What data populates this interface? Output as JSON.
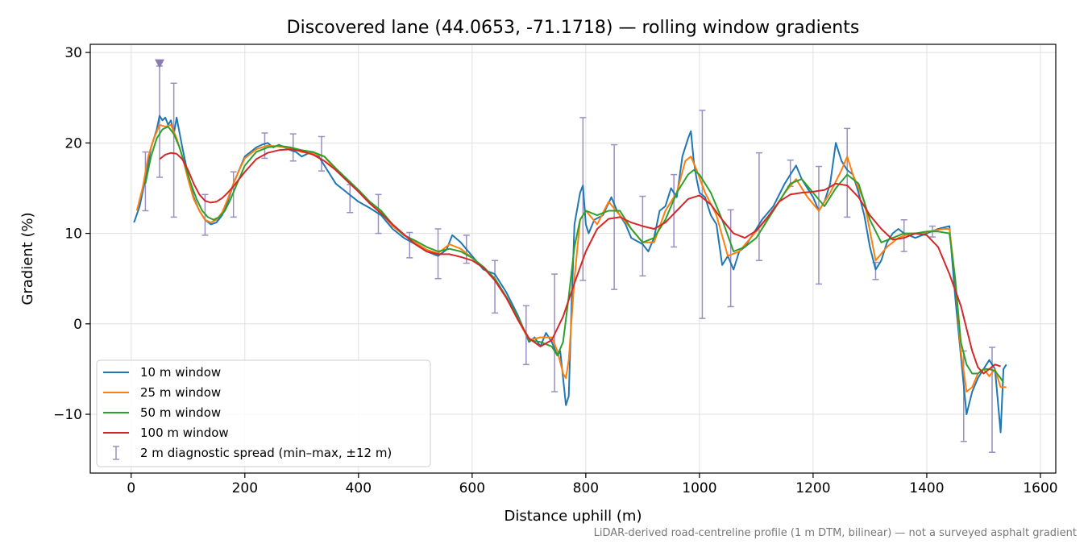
{
  "chart_data": {
    "type": "line",
    "title": "Discovered lane (44.0653, -71.1718) — rolling window gradients",
    "xlabel": "Distance uphill (m)",
    "ylabel": "Gradient (%)",
    "footnote": "LiDAR-derived road-centreline profile (1 m DTM, bilinear) — not a surveyed asphalt gradient",
    "xlim": [
      -72,
      1627
    ],
    "ylim": [
      -16.5,
      30.9
    ],
    "xticks": [
      0,
      200,
      400,
      600,
      800,
      1000,
      1200,
      1400,
      1600
    ],
    "xtick_labels": [
      "0",
      "200",
      "400",
      "600",
      "800",
      "1000",
      "1200",
      "1400",
      "1600"
    ],
    "yticks": [
      -10,
      0,
      10,
      20,
      30
    ],
    "ytick_labels": [
      "−10",
      "0",
      "10",
      "20",
      "30"
    ],
    "grid": true,
    "legend_position": "lower-left",
    "marker": {
      "x": 50,
      "y": 28.8,
      "shape": "triangle-down",
      "color": "#8c7bb0"
    },
    "series": [
      {
        "name": "10 m window",
        "color": "#1f77b4",
        "x": [
          5,
          15,
          25,
          35,
          45,
          50,
          55,
          60,
          65,
          70,
          75,
          80,
          90,
          100,
          110,
          120,
          130,
          140,
          150,
          160,
          170,
          180,
          190,
          200,
          210,
          220,
          230,
          240,
          250,
          260,
          270,
          280,
          290,
          300,
          310,
          320,
          330,
          340,
          350,
          360,
          380,
          400,
          420,
          440,
          460,
          480,
          500,
          520,
          540,
          555,
          565,
          580,
          600,
          620,
          640,
          660,
          680,
          700,
          710,
          720,
          730,
          740,
          750,
          755,
          760,
          765,
          770,
          775,
          780,
          790,
          795,
          800,
          805,
          815,
          830,
          845,
          855,
          870,
          880,
          900,
          910,
          920,
          930,
          940,
          950,
          960,
          970,
          980,
          985,
          990,
          995,
          1000,
          1010,
          1020,
          1030,
          1040,
          1050,
          1060,
          1070,
          1080,
          1090,
          1100,
          1110,
          1130,
          1150,
          1160,
          1170,
          1180,
          1200,
          1210,
          1220,
          1230,
          1240,
          1250,
          1260,
          1270,
          1280,
          1290,
          1300,
          1310,
          1320,
          1330,
          1340,
          1350,
          1360,
          1380,
          1400,
          1420,
          1440,
          1450,
          1460,
          1470,
          1480,
          1490,
          1500,
          1510,
          1520,
          1530,
          1535,
          1540
        ],
        "values": [
          11.2,
          13.0,
          16.0,
          19.5,
          21.5,
          23.0,
          22.5,
          22.8,
          22.0,
          22.5,
          21.0,
          22.8,
          19.5,
          16.5,
          14.0,
          12.5,
          11.5,
          11.0,
          11.2,
          12.0,
          13.5,
          15.5,
          17.0,
          18.5,
          19.0,
          19.5,
          19.8,
          20.0,
          19.5,
          19.8,
          19.5,
          19.2,
          19.0,
          18.5,
          18.8,
          19.0,
          18.5,
          17.5,
          16.5,
          15.5,
          14.5,
          13.5,
          12.8,
          12.0,
          10.5,
          9.5,
          8.8,
          8.0,
          7.5,
          8.2,
          9.8,
          9.0,
          7.5,
          6.0,
          5.5,
          3.5,
          1.0,
          -2.0,
          -1.5,
          -2.5,
          -1.0,
          -2.0,
          -3.5,
          -3.0,
          -6.0,
          -9.0,
          -8.0,
          2.0,
          11.0,
          14.5,
          15.3,
          11.0,
          10.0,
          11.5,
          12.0,
          14.0,
          12.5,
          11.0,
          9.5,
          8.8,
          8.0,
          9.5,
          12.5,
          13.0,
          15.0,
          14.0,
          18.5,
          20.5,
          21.3,
          18.0,
          16.0,
          14.5,
          14.0,
          12.0,
          11.0,
          6.5,
          7.5,
          6.0,
          8.0,
          8.5,
          9.5,
          10.5,
          11.5,
          13.0,
          15.5,
          16.5,
          17.5,
          16.0,
          14.0,
          12.5,
          13.5,
          15.5,
          20.0,
          18.0,
          17.0,
          16.5,
          14.5,
          12.0,
          8.5,
          6.0,
          7.0,
          9.0,
          10.0,
          10.5,
          10.0,
          9.5,
          10.0,
          10.5,
          10.8,
          3.0,
          -3.5,
          -10.0,
          -7.5,
          -6.0,
          -5.0,
          -4.0,
          -5.0,
          -12.0,
          -5.0,
          -4.5
        ],
        "values_note": ""
      },
      {
        "name": "25 m window",
        "color": "#ff7f0e",
        "x": [
          10,
          20,
          30,
          40,
          50,
          60,
          70,
          80,
          90,
          100,
          110,
          120,
          130,
          140,
          150,
          160,
          170,
          180,
          190,
          200,
          220,
          240,
          260,
          280,
          300,
          320,
          340,
          360,
          380,
          400,
          420,
          440,
          460,
          480,
          500,
          520,
          540,
          560,
          580,
          600,
          620,
          640,
          660,
          680,
          700,
          720,
          740,
          750,
          760,
          765,
          770,
          780,
          790,
          800,
          820,
          840,
          860,
          880,
          900,
          920,
          940,
          960,
          975,
          985,
          995,
          1010,
          1030,
          1050,
          1070,
          1090,
          1110,
          1130,
          1150,
          1170,
          1190,
          1210,
          1230,
          1250,
          1260,
          1270,
          1290,
          1310,
          1330,
          1350,
          1370,
          1390,
          1410,
          1430,
          1440,
          1450,
          1460,
          1470,
          1480,
          1490,
          1500,
          1510,
          1520,
          1530,
          1540
        ],
        "values": [
          12.5,
          15.0,
          18.5,
          20.5,
          22.0,
          21.8,
          22.0,
          20.5,
          18.5,
          16.0,
          13.8,
          12.5,
          11.5,
          11.2,
          11.5,
          12.3,
          13.8,
          15.5,
          17.0,
          18.3,
          19.3,
          19.7,
          19.6,
          19.4,
          19.0,
          18.8,
          18.5,
          17.0,
          15.8,
          14.8,
          13.3,
          12.3,
          10.8,
          9.8,
          9.0,
          8.2,
          7.8,
          8.8,
          8.3,
          7.3,
          6.2,
          5.0,
          3.0,
          0.5,
          -1.8,
          -1.5,
          -1.5,
          -3.0,
          -5.5,
          -6.0,
          -4.0,
          5.0,
          11.5,
          12.5,
          11.0,
          13.5,
          12.0,
          10.5,
          9.0,
          9.0,
          12.5,
          14.5,
          18.0,
          18.5,
          17.0,
          14.5,
          12.0,
          7.5,
          8.0,
          9.5,
          11.0,
          12.5,
          14.5,
          16.0,
          14.0,
          12.5,
          14.5,
          17.0,
          18.5,
          16.5,
          13.5,
          7.0,
          8.5,
          9.5,
          10.0,
          10.0,
          10.3,
          10.5,
          10.5,
          5.0,
          -3.0,
          -7.5,
          -7.0,
          -5.5,
          -5.0,
          -5.8,
          -5.0,
          -7.0,
          -7.0
        ],
        "values_note": ""
      },
      {
        "name": "50 m window",
        "color": "#2ca02c",
        "x": [
          25,
          35,
          45,
          55,
          65,
          75,
          85,
          95,
          105,
          115,
          125,
          135,
          145,
          155,
          165,
          175,
          185,
          200,
          220,
          240,
          260,
          280,
          300,
          320,
          340,
          360,
          380,
          400,
          420,
          440,
          460,
          480,
          500,
          520,
          540,
          560,
          580,
          600,
          620,
          640,
          660,
          680,
          700,
          720,
          740,
          750,
          760,
          770,
          780,
          790,
          800,
          820,
          840,
          860,
          880,
          900,
          920,
          940,
          960,
          980,
          990,
          1000,
          1020,
          1040,
          1060,
          1080,
          1100,
          1120,
          1140,
          1160,
          1180,
          1200,
          1220,
          1240,
          1260,
          1280,
          1300,
          1320,
          1340,
          1360,
          1380,
          1400,
          1420,
          1440,
          1450,
          1460,
          1470,
          1480,
          1490,
          1500,
          1510,
          1520,
          1530,
          1535
        ],
        "values": [
          15.5,
          18.5,
          20.5,
          21.5,
          21.8,
          21.0,
          19.5,
          17.5,
          15.5,
          13.8,
          12.5,
          11.8,
          11.5,
          11.8,
          12.5,
          13.8,
          15.3,
          17.5,
          19.0,
          19.5,
          19.7,
          19.5,
          19.2,
          19.0,
          18.5,
          17.2,
          16.0,
          14.8,
          13.5,
          12.5,
          11.0,
          9.8,
          9.2,
          8.5,
          8.0,
          8.3,
          8.0,
          7.3,
          6.3,
          5.0,
          3.0,
          0.8,
          -1.8,
          -2.0,
          -2.5,
          -3.5,
          -2.0,
          3.0,
          8.5,
          11.5,
          12.5,
          12.0,
          12.5,
          12.5,
          10.5,
          9.0,
          9.5,
          11.5,
          14.5,
          16.5,
          17.0,
          16.5,
          14.5,
          11.5,
          8.0,
          8.5,
          9.5,
          11.5,
          13.5,
          15.5,
          16.0,
          14.5,
          13.0,
          15.0,
          16.5,
          15.5,
          11.5,
          9.0,
          9.5,
          10.0,
          10.0,
          10.2,
          10.2,
          10.0,
          5.0,
          -2.0,
          -4.5,
          -5.5,
          -5.5,
          -5.0,
          -5.0,
          -5.2,
          -6.0,
          -6.5
        ],
        "values_note": ""
      },
      {
        "name": "100 m window",
        "color": "#d62728",
        "x": [
          50,
          60,
          70,
          80,
          90,
          100,
          110,
          120,
          130,
          140,
          150,
          160,
          170,
          180,
          190,
          200,
          220,
          240,
          260,
          280,
          300,
          320,
          340,
          360,
          380,
          400,
          420,
          440,
          460,
          480,
          500,
          520,
          540,
          560,
          580,
          600,
          620,
          640,
          660,
          680,
          700,
          720,
          740,
          760,
          780,
          800,
          820,
          840,
          860,
          880,
          900,
          920,
          940,
          960,
          980,
          1000,
          1020,
          1040,
          1060,
          1080,
          1100,
          1120,
          1140,
          1160,
          1180,
          1200,
          1220,
          1240,
          1260,
          1280,
          1300,
          1320,
          1340,
          1360,
          1380,
          1400,
          1420,
          1440,
          1460,
          1480,
          1490,
          1500,
          1510,
          1520,
          1530
        ],
        "values": [
          18.2,
          18.7,
          18.9,
          18.8,
          18.2,
          17.0,
          15.5,
          14.3,
          13.6,
          13.4,
          13.5,
          13.9,
          14.5,
          15.2,
          16.0,
          16.8,
          18.2,
          18.9,
          19.2,
          19.3,
          19.1,
          18.7,
          18.0,
          17.0,
          15.8,
          14.6,
          13.3,
          12.2,
          11.0,
          9.9,
          8.8,
          8.0,
          7.7,
          7.7,
          7.4,
          7.0,
          6.2,
          4.8,
          2.9,
          0.5,
          -1.6,
          -2.5,
          -1.8,
          0.8,
          4.5,
          8.0,
          10.5,
          11.6,
          11.8,
          11.2,
          10.8,
          10.5,
          11.2,
          12.5,
          13.8,
          14.2,
          13.2,
          11.5,
          10.0,
          9.5,
          10.3,
          11.8,
          13.5,
          14.3,
          14.5,
          14.6,
          14.8,
          15.5,
          15.3,
          14.0,
          12.0,
          10.5,
          9.3,
          9.5,
          10.0,
          9.8,
          8.5,
          5.5,
          2.0,
          -3.0,
          -4.8,
          -5.5,
          -5.0,
          -4.5,
          -4.7
        ],
        "values_note": ""
      }
    ],
    "error_series": {
      "name": "2 m diagnostic spread (min–max, ±12 m)",
      "color": "#9a8fc0",
      "points": [
        {
          "x": 25,
          "low": 12.5,
          "high": 19.0
        },
        {
          "x": 50,
          "low": 16.2,
          "high": 28.5
        },
        {
          "x": 75,
          "low": 11.8,
          "high": 26.6
        },
        {
          "x": 130,
          "low": 9.8,
          "high": 14.3
        },
        {
          "x": 180,
          "low": 11.8,
          "high": 16.8
        },
        {
          "x": 235,
          "low": 18.3,
          "high": 21.1
        },
        {
          "x": 285,
          "low": 18.0,
          "high": 21.0
        },
        {
          "x": 335,
          "low": 16.9,
          "high": 20.7
        },
        {
          "x": 385,
          "low": 12.3,
          "high": 15.4
        },
        {
          "x": 435,
          "low": 10.0,
          "high": 14.3
        },
        {
          "x": 490,
          "low": 7.3,
          "high": 10.1
        },
        {
          "x": 540,
          "low": 5.0,
          "high": 10.5
        },
        {
          "x": 590,
          "low": 6.7,
          "high": 9.8
        },
        {
          "x": 640,
          "low": 1.2,
          "high": 7.0
        },
        {
          "x": 695,
          "low": -4.5,
          "high": 2.0
        },
        {
          "x": 745,
          "low": -7.5,
          "high": 5.5
        },
        {
          "x": 795,
          "low": 4.8,
          "high": 22.8
        },
        {
          "x": 850,
          "low": 3.8,
          "high": 19.8
        },
        {
          "x": 900,
          "low": 5.3,
          "high": 14.1
        },
        {
          "x": 955,
          "low": 8.5,
          "high": 16.5
        },
        {
          "x": 1005,
          "low": 0.6,
          "high": 23.6
        },
        {
          "x": 1055,
          "low": 1.9,
          "high": 12.6
        },
        {
          "x": 1105,
          "low": 7.0,
          "high": 18.9
        },
        {
          "x": 1160,
          "low": 15.2,
          "high": 18.1
        },
        {
          "x": 1210,
          "low": 4.4,
          "high": 17.4
        },
        {
          "x": 1260,
          "low": 11.8,
          "high": 21.6
        },
        {
          "x": 1310,
          "low": 4.9,
          "high": 6.8
        },
        {
          "x": 1360,
          "low": 8.0,
          "high": 11.5
        },
        {
          "x": 1410,
          "low": 9.6,
          "high": 10.8
        },
        {
          "x": 1465,
          "low": -13.0,
          "high": -3.0
        },
        {
          "x": 1515,
          "low": -14.2,
          "high": -2.6
        }
      ]
    }
  }
}
